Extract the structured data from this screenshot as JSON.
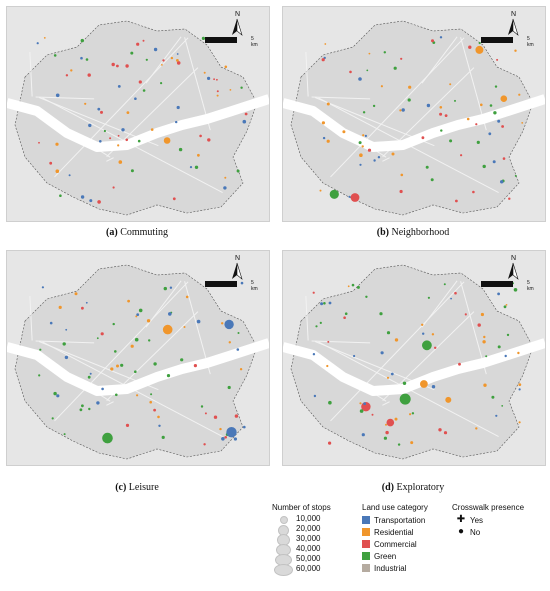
{
  "panels": [
    {
      "caption_bold": "(a)",
      "caption_text": " Commuting"
    },
    {
      "caption_bold": "(b)",
      "caption_text": " Neighborhood"
    },
    {
      "caption_bold": "(c)",
      "caption_text": " Leisure"
    },
    {
      "caption_bold": "(d)",
      "caption_text": " Exploratory"
    }
  ],
  "north": {
    "letter": "N",
    "scale": "5 km"
  },
  "legend": {
    "stops_title": "Number of stops",
    "stops": [
      "10,000",
      "20,000",
      "30,000",
      "40,000",
      "50,000",
      "60,000"
    ],
    "landuse_title": "Land use category",
    "landuse": [
      {
        "label": "Transportation",
        "color": "#4a78b8"
      },
      {
        "label": "Residential",
        "color": "#f0962c"
      },
      {
        "label": "Commercial",
        "color": "#e05050"
      },
      {
        "label": "Green",
        "color": "#3fa03f"
      },
      {
        "label": "Industrial",
        "color": "#b5aba0"
      }
    ],
    "crosswalk_title": "Crosswalk presence",
    "crosswalk": [
      {
        "label": "Yes",
        "symbol": "plus-icon"
      },
      {
        "label": "No",
        "symbol": "dot-icon"
      }
    ]
  }
}
